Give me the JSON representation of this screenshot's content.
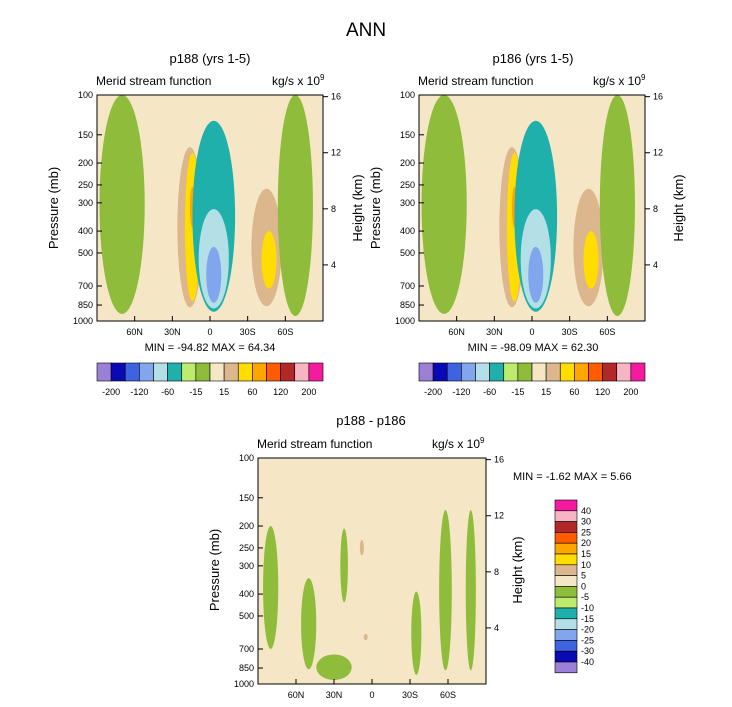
{
  "figure": {
    "title": "ANN"
  },
  "colors": {
    "c1": "#9c7fd6",
    "c2": "#0a0ab4",
    "c3": "#3d63e0",
    "c4": "#82a6ee",
    "c5": "#b5dfe6",
    "c6": "#20b0ac",
    "c7": "#bcec6e",
    "c8": "#8fbc3a",
    "c9": "#f5e6c6",
    "c10": "#dcb68c",
    "c11": "#ffdd00",
    "c12": "#ffa500",
    "c13": "#ff5b00",
    "c14": "#b02828",
    "c15": "#f7b4c2",
    "c16": "#f51aa0",
    "frame": "#000000",
    "background": "#ffffff"
  },
  "chart_data": [
    {
      "id": "panel-p188",
      "type": "contour",
      "title": "p188 (yrs 1-5)",
      "left_label": "Merid stream function",
      "units": "kg/s x 10",
      "units_exp": "9",
      "ylabel": "Pressure (mb)",
      "y2label": "Height (km)",
      "x_ticks": [
        "60N",
        "30N",
        "0",
        "30S",
        "60S"
      ],
      "x_tick_values": [
        60,
        30,
        0,
        -30,
        -60
      ],
      "xlim": [
        90,
        -90
      ],
      "y_ticks": [
        "100",
        "150",
        "200",
        "250",
        "300",
        "400",
        "500",
        "700",
        "850",
        "1000"
      ],
      "y_tick_values": [
        100,
        150,
        200,
        250,
        300,
        400,
        500,
        700,
        850,
        1000
      ],
      "ylim": [
        100,
        1000
      ],
      "y2_ticks": [
        "16",
        "12",
        "8",
        "4"
      ],
      "y2_tick_values": [
        16,
        12,
        8,
        4
      ],
      "stats": "MIN = -94.82   MAX =  64.34",
      "min": -94.82,
      "max": 64.34,
      "features": [
        {
          "lat": 16,
          "p": 520,
          "dlat": 10,
          "dp": 700,
          "value": 25
        },
        {
          "lat": 14,
          "p": 500,
          "dlat": 6,
          "dp": 640,
          "value": 50
        },
        {
          "lat": 14,
          "p": 320,
          "dlat": 2,
          "dp": 130,
          "value": 70
        },
        {
          "lat": -3,
          "p": 520,
          "dlat": 17,
          "dp": 780,
          "value": -25
        },
        {
          "lat": -3,
          "p": 600,
          "dlat": 12,
          "dp": 560,
          "value": -70
        },
        {
          "lat": -3,
          "p": 650,
          "dlat": 6,
          "dp": 360,
          "value": -80
        },
        {
          "lat": -2,
          "p": 770,
          "dlat": 2,
          "dp": 80,
          "value": -90
        },
        {
          "lat": -45,
          "p": 560,
          "dlat": 12,
          "dp": 600,
          "value": 35
        },
        {
          "lat": -47,
          "p": 560,
          "dlat": 6,
          "dp": 320,
          "value": 50
        },
        {
          "lat": 70,
          "p": 500,
          "dlat": 18,
          "dp": 860,
          "value": -3
        },
        {
          "lat": -68,
          "p": 500,
          "dlat": 14,
          "dp": 900,
          "value": -3
        }
      ]
    },
    {
      "id": "panel-p186",
      "type": "contour",
      "title": "p186 (yrs 1-5)",
      "left_label": "Merid stream function",
      "units": "kg/s x 10",
      "units_exp": "9",
      "ylabel": "Pressure (mb)",
      "y2label": "Height (km)",
      "x_ticks": [
        "60N",
        "30N",
        "0",
        "30S",
        "60S"
      ],
      "x_tick_values": [
        60,
        30,
        0,
        -30,
        -60
      ],
      "xlim": [
        90,
        -90
      ],
      "y_ticks": [
        "100",
        "150",
        "200",
        "250",
        "300",
        "400",
        "500",
        "700",
        "850",
        "1000"
      ],
      "y_tick_values": [
        100,
        150,
        200,
        250,
        300,
        400,
        500,
        700,
        850,
        1000
      ],
      "ylim": [
        100,
        1000
      ],
      "y2_ticks": [
        "16",
        "12",
        "8",
        "4"
      ],
      "y2_tick_values": [
        16,
        12,
        8,
        4
      ],
      "stats": "MIN = -98.09   MAX =  62.30",
      "min": -98.09,
      "max": 62.3,
      "features": [
        {
          "lat": 16,
          "p": 520,
          "dlat": 10,
          "dp": 700,
          "value": 25
        },
        {
          "lat": 14,
          "p": 500,
          "dlat": 6,
          "dp": 640,
          "value": 50
        },
        {
          "lat": 14,
          "p": 320,
          "dlat": 2,
          "dp": 130,
          "value": 70
        },
        {
          "lat": -3,
          "p": 520,
          "dlat": 17,
          "dp": 780,
          "value": -25
        },
        {
          "lat": -3,
          "p": 600,
          "dlat": 12,
          "dp": 560,
          "value": -70
        },
        {
          "lat": -3,
          "p": 650,
          "dlat": 6,
          "dp": 360,
          "value": -80
        },
        {
          "lat": -2,
          "p": 770,
          "dlat": 2,
          "dp": 80,
          "value": -90
        },
        {
          "lat": -45,
          "p": 560,
          "dlat": 12,
          "dp": 600,
          "value": 35
        },
        {
          "lat": -47,
          "p": 560,
          "dlat": 6,
          "dp": 320,
          "value": 50
        },
        {
          "lat": 70,
          "p": 500,
          "dlat": 18,
          "dp": 860,
          "value": -3
        },
        {
          "lat": -68,
          "p": 500,
          "dlat": 14,
          "dp": 900,
          "value": -3
        }
      ]
    },
    {
      "id": "panel-diff",
      "type": "contour",
      "title": "p188 - p186",
      "left_label": "Merid stream function",
      "units": "kg/s x 10",
      "units_exp": "9",
      "ylabel": "Pressure (mb)",
      "y2label": "Height (km)",
      "x_ticks": [
        "60N",
        "30N",
        "0",
        "30S",
        "60S"
      ],
      "x_tick_values": [
        60,
        30,
        0,
        -30,
        -60
      ],
      "xlim": [
        90,
        -90
      ],
      "y_ticks": [
        "100",
        "150",
        "200",
        "250",
        "300",
        "400",
        "500",
        "700",
        "850",
        "1000"
      ],
      "y_tick_values": [
        100,
        150,
        200,
        250,
        300,
        400,
        500,
        700,
        850,
        1000
      ],
      "ylim": [
        100,
        1000
      ],
      "y2_ticks": [
        "16",
        "12",
        "8",
        "4"
      ],
      "y2_tick_values": [
        16,
        12,
        8,
        4
      ],
      "stats": "MIN = -1.62   MAX =  5.66",
      "min": -1.62,
      "max": 5.66,
      "features": [
        {
          "lat": 80,
          "p": 450,
          "dlat": 6,
          "dp": 500,
          "value": -2
        },
        {
          "lat": 50,
          "p": 600,
          "dlat": 6,
          "dp": 520,
          "value": -2
        },
        {
          "lat": 30,
          "p": 850,
          "dlat": 14,
          "dp": 220,
          "value": -2
        },
        {
          "lat": 22,
          "p": 320,
          "dlat": 3,
          "dp": 230,
          "value": -2
        },
        {
          "lat": -35,
          "p": 650,
          "dlat": 4,
          "dp": 520,
          "value": -2
        },
        {
          "lat": -58,
          "p": 520,
          "dlat": 5,
          "dp": 700,
          "value": -2
        },
        {
          "lat": -78,
          "p": 520,
          "dlat": 4,
          "dp": 700,
          "value": -2
        },
        {
          "lat": 8,
          "p": 250,
          "dlat": 1.5,
          "dp": 40,
          "value": 6
        },
        {
          "lat": 5,
          "p": 620,
          "dlat": 1.2,
          "dp": 40,
          "value": 6
        }
      ]
    }
  ],
  "legends": [
    {
      "id": "legend-top-left",
      "labels": [
        "-200",
        "-120",
        "-60",
        "-15",
        "15",
        "60",
        "120",
        "200"
      ],
      "levels": [
        -200,
        -160,
        -120,
        -80,
        -60,
        -40,
        -15,
        0,
        15,
        40,
        60,
        80,
        120,
        160,
        200
      ]
    },
    {
      "id": "legend-top-right",
      "labels": [
        "-200",
        "-120",
        "-60",
        "-15",
        "15",
        "60",
        "120",
        "200"
      ],
      "levels": [
        -200,
        -160,
        -120,
        -80,
        -60,
        -40,
        -15,
        0,
        15,
        40,
        60,
        80,
        120,
        160,
        200
      ]
    },
    {
      "id": "legend-diff",
      "labels": [
        "40",
        "30",
        "25",
        "20",
        "15",
        "10",
        "5",
        "0",
        "-5",
        "-10",
        "-15",
        "-20",
        "-25",
        "-30",
        "-40"
      ],
      "levels": [
        40,
        30,
        25,
        20,
        15,
        10,
        5,
        0,
        -5,
        -10,
        -15,
        -20,
        -25,
        -30,
        -40
      ]
    }
  ]
}
